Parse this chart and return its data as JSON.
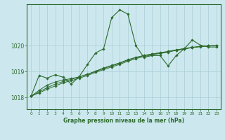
{
  "title": "Graphe pression niveau de la mer (hPa)",
  "background_color": "#cce8ee",
  "grid_color": "#aacdd6",
  "line_color": "#2d6a2d",
  "x_ticks": [
    0,
    1,
    2,
    3,
    4,
    5,
    6,
    7,
    8,
    9,
    10,
    11,
    12,
    13,
    14,
    15,
    16,
    17,
    18,
    19,
    20,
    21,
    22,
    23
  ],
  "y_ticks": [
    1018,
    1019,
    1020
  ],
  "ylim": [
    1017.55,
    1021.6
  ],
  "xlim": [
    -0.5,
    23.5
  ],
  "s1": [
    1018.05,
    1018.85,
    1018.75,
    1018.88,
    1018.78,
    1018.52,
    1018.82,
    1019.28,
    1019.72,
    1019.88,
    1021.08,
    1021.38,
    1021.22,
    1020.0,
    1019.55,
    1019.62,
    1019.62,
    1019.22,
    1019.62,
    1019.88,
    1020.22,
    1020.02,
    1019.95,
    1019.95
  ],
  "s2": [
    1018.05,
    1018.18,
    1018.32,
    1018.45,
    1018.57,
    1018.65,
    1018.75,
    1018.85,
    1018.97,
    1019.08,
    1019.18,
    1019.28,
    1019.4,
    1019.5,
    1019.58,
    1019.65,
    1019.7,
    1019.75,
    1019.82,
    1019.87,
    1019.93,
    1019.97,
    1020.0,
    1020.0
  ],
  "s3": [
    1018.05,
    1018.22,
    1018.38,
    1018.52,
    1018.62,
    1018.7,
    1018.8,
    1018.9,
    1019.0,
    1019.12,
    1019.22,
    1019.32,
    1019.44,
    1019.54,
    1019.62,
    1019.68,
    1019.73,
    1019.78,
    1019.84,
    1019.89,
    1019.94,
    1019.97,
    1020.0,
    1020.0
  ],
  "s4": [
    1018.05,
    1018.28,
    1018.48,
    1018.6,
    1018.68,
    1018.73,
    1018.8,
    1018.9,
    1019.02,
    1019.14,
    1019.24,
    1019.34,
    1019.46,
    1019.55,
    1019.62,
    1019.67,
    1019.72,
    1019.77,
    1019.83,
    1019.88,
    1019.93,
    1019.96,
    1019.99,
    1020.0
  ]
}
